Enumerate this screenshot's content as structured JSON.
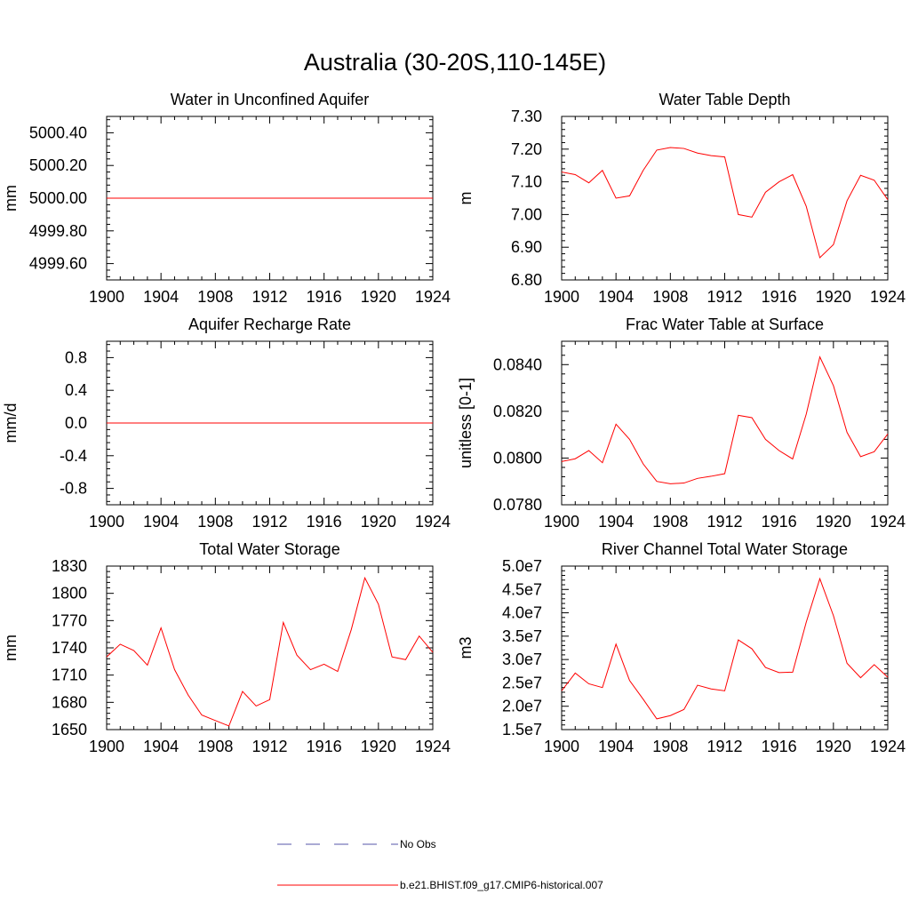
{
  "figure": {
    "title": "Australia (30-20S,110-145E)",
    "line_color": "#ff0000",
    "obs_color": "#5555aa"
  },
  "legend": {
    "items": [
      {
        "label": "No Obs",
        "style": "dashed",
        "color": "#5555aa"
      },
      {
        "label": "b.e21.BHIST.f09_g17.CMIP6-historical.007",
        "style": "solid",
        "color": "#ff0000"
      }
    ]
  },
  "chart_data": [
    {
      "type": "line",
      "title": "Water in Unconfined Aquifer",
      "ylabel": "mm",
      "xlabel": "",
      "xlim": [
        1900,
        1924
      ],
      "ylim": [
        4999.5,
        5000.5
      ],
      "xticks": [
        "1900",
        "1904",
        "1908",
        "1912",
        "1916",
        "1920",
        "1924"
      ],
      "yticks": [
        {
          "v": 4999.6,
          "label": "4999.60"
        },
        {
          "v": 4999.8,
          "label": "4999.80"
        },
        {
          "v": 5000.0,
          "label": "5000.00"
        },
        {
          "v": 5000.2,
          "label": "5000.20"
        },
        {
          "v": 5000.4,
          "label": "5000.40"
        }
      ],
      "series": [
        {
          "x": [
            1900,
            1901,
            1902,
            1903,
            1904,
            1905,
            1906,
            1907,
            1908,
            1909,
            1910,
            1911,
            1912,
            1913,
            1914,
            1915,
            1916,
            1917,
            1918,
            1919,
            1920,
            1921,
            1922,
            1923,
            1924
          ],
          "values": [
            5000,
            5000,
            5000,
            5000,
            5000,
            5000,
            5000,
            5000,
            5000,
            5000,
            5000,
            5000,
            5000,
            5000,
            5000,
            5000,
            5000,
            5000,
            5000,
            5000,
            5000,
            5000,
            5000,
            5000,
            5000
          ]
        }
      ]
    },
    {
      "type": "line",
      "title": "Water Table Depth",
      "ylabel": "m",
      "xlabel": "",
      "xlim": [
        1900,
        1924
      ],
      "ylim": [
        6.8,
        7.3
      ],
      "xticks": [
        "1900",
        "1904",
        "1908",
        "1912",
        "1916",
        "1920",
        "1924"
      ],
      "yticks": [
        {
          "v": 6.8,
          "label": "6.80"
        },
        {
          "v": 6.9,
          "label": "6.90"
        },
        {
          "v": 7.0,
          "label": "7.00"
        },
        {
          "v": 7.1,
          "label": "7.10"
        },
        {
          "v": 7.2,
          "label": "7.20"
        },
        {
          "v": 7.3,
          "label": "7.30"
        }
      ],
      "series": [
        {
          "x": [
            1900,
            1901,
            1902,
            1903,
            1904,
            1905,
            1906,
            1907,
            1908,
            1909,
            1910,
            1911,
            1912,
            1913,
            1914,
            1915,
            1916,
            1917,
            1918,
            1919,
            1920,
            1921,
            1922,
            1923,
            1924
          ],
          "values": [
            7.13,
            7.122,
            7.097,
            7.135,
            7.05,
            7.057,
            7.135,
            7.197,
            7.205,
            7.202,
            7.188,
            7.18,
            7.176,
            7.0,
            6.992,
            7.068,
            7.1,
            7.122,
            7.025,
            6.868,
            6.908,
            7.042,
            7.12,
            7.105,
            7.045
          ]
        }
      ]
    },
    {
      "type": "line",
      "title": "Aquifer Recharge Rate",
      "ylabel": "mm/d",
      "xlabel": "",
      "xlim": [
        1900,
        1924
      ],
      "ylim": [
        -1.0,
        1.0
      ],
      "xticks": [
        "1900",
        "1904",
        "1908",
        "1912",
        "1916",
        "1920",
        "1924"
      ],
      "yticks": [
        {
          "v": -0.8,
          "label": "-0.8"
        },
        {
          "v": -0.4,
          "label": "-0.4"
        },
        {
          "v": 0.0,
          "label": "0.0"
        },
        {
          "v": 0.4,
          "label": "0.4"
        },
        {
          "v": 0.8,
          "label": "0.8"
        }
      ],
      "series": [
        {
          "x": [
            1900,
            1901,
            1902,
            1903,
            1904,
            1905,
            1906,
            1907,
            1908,
            1909,
            1910,
            1911,
            1912,
            1913,
            1914,
            1915,
            1916,
            1917,
            1918,
            1919,
            1920,
            1921,
            1922,
            1923,
            1924
          ],
          "values": [
            0,
            0,
            0,
            0,
            0,
            0,
            0,
            0,
            0,
            0,
            0,
            0,
            0,
            0,
            0,
            0,
            0,
            0,
            0,
            0,
            0,
            0,
            0,
            0,
            0
          ]
        }
      ]
    },
    {
      "type": "line",
      "title": "Frac Water Table at Surface",
      "ylabel": "unitless [0-1]",
      "xlabel": "",
      "xlim": [
        1900,
        1924
      ],
      "ylim": [
        0.078,
        0.085
      ],
      "xticks": [
        "1900",
        "1904",
        "1908",
        "1912",
        "1916",
        "1920",
        "1924"
      ],
      "yticks": [
        {
          "v": 0.078,
          "label": "0.0780"
        },
        {
          "v": 0.08,
          "label": "0.0800"
        },
        {
          "v": 0.082,
          "label": "0.0820"
        },
        {
          "v": 0.084,
          "label": "0.0840"
        }
      ],
      "series": [
        {
          "x": [
            1900,
            1901,
            1902,
            1903,
            1904,
            1905,
            1906,
            1907,
            1908,
            1909,
            1910,
            1911,
            1912,
            1913,
            1914,
            1915,
            1916,
            1917,
            1918,
            1919,
            1920,
            1921,
            1922,
            1923,
            1924
          ],
          "values": [
            0.07985,
            0.07997,
            0.08032,
            0.0798,
            0.08145,
            0.0808,
            0.07975,
            0.079,
            0.0789,
            0.07893,
            0.07913,
            0.07922,
            0.07933,
            0.08183,
            0.08173,
            0.0808,
            0.08032,
            0.07996,
            0.08188,
            0.08433,
            0.0831,
            0.0811,
            0.08006,
            0.08027,
            0.08103
          ]
        }
      ]
    },
    {
      "type": "line",
      "title": "Total Water Storage",
      "ylabel": "mm",
      "xlabel": "",
      "xlim": [
        1900,
        1924
      ],
      "ylim": [
        1650,
        1830
      ],
      "xticks": [
        "1900",
        "1904",
        "1908",
        "1912",
        "1916",
        "1920",
        "1924"
      ],
      "yticks": [
        {
          "v": 1650,
          "label": "1650"
        },
        {
          "v": 1680,
          "label": "1680"
        },
        {
          "v": 1710,
          "label": "1710"
        },
        {
          "v": 1740,
          "label": "1740"
        },
        {
          "v": 1770,
          "label": "1770"
        },
        {
          "v": 1800,
          "label": "1800"
        },
        {
          "v": 1830,
          "label": "1830"
        }
      ],
      "series": [
        {
          "x": [
            1900,
            1901,
            1902,
            1903,
            1904,
            1905,
            1906,
            1907,
            1908,
            1909,
            1910,
            1911,
            1912,
            1913,
            1914,
            1915,
            1916,
            1917,
            1918,
            1919,
            1920,
            1921,
            1922,
            1923,
            1924
          ],
          "values": [
            1730,
            1744,
            1737,
            1721,
            1762,
            1716,
            1688,
            1666,
            1660,
            1654,
            1692,
            1676,
            1683,
            1768,
            1732,
            1716,
            1722,
            1714,
            1760,
            1817,
            1788,
            1730,
            1727,
            1753,
            1735
          ]
        }
      ]
    },
    {
      "type": "line",
      "title": "River Channel Total Water Storage",
      "ylabel": "m3",
      "xlabel": "",
      "xlim": [
        1900,
        1924
      ],
      "ylim": [
        15000000,
        50000000
      ],
      "xticks": [
        "1900",
        "1904",
        "1908",
        "1912",
        "1916",
        "1920",
        "1924"
      ],
      "yticks": [
        {
          "v": 15000000,
          "label": "1.5e7"
        },
        {
          "v": 20000000,
          "label": "2.0e7"
        },
        {
          "v": 25000000,
          "label": "2.5e7"
        },
        {
          "v": 30000000,
          "label": "3.0e7"
        },
        {
          "v": 35000000,
          "label": "3.5e7"
        },
        {
          "v": 40000000,
          "label": "4.0e7"
        },
        {
          "v": 45000000,
          "label": "4.5e7"
        },
        {
          "v": 50000000,
          "label": "5.0e7"
        }
      ],
      "series": [
        {
          "x": [
            1900,
            1901,
            1902,
            1903,
            1904,
            1905,
            1906,
            1907,
            1908,
            1909,
            1910,
            1911,
            1912,
            1913,
            1914,
            1915,
            1916,
            1917,
            1918,
            1919,
            1920,
            1921,
            1922,
            1923,
            1924
          ],
          "values": [
            23300000,
            27100000,
            24800000,
            24000000,
            33300000,
            25500000,
            21500000,
            17300000,
            18000000,
            19300000,
            24500000,
            23700000,
            23300000,
            34200000,
            32300000,
            28300000,
            27200000,
            27300000,
            38000000,
            47300000,
            39400000,
            29200000,
            26100000,
            28900000,
            26200000
          ]
        }
      ]
    }
  ]
}
